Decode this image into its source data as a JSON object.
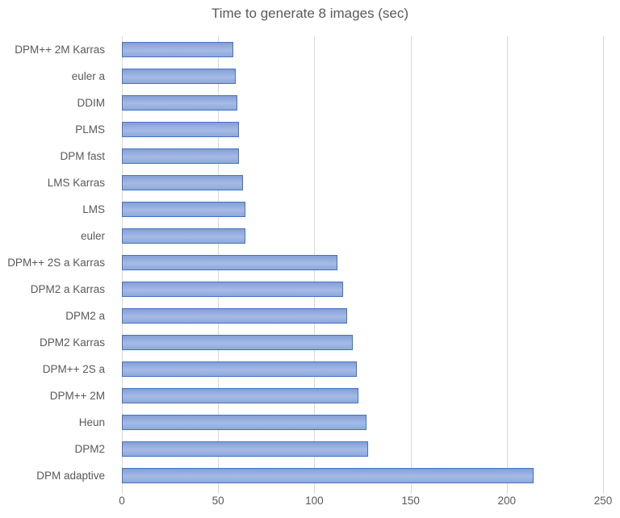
{
  "title": "Time to generate 8 images (sec)",
  "colors": {
    "background": "#ffffff",
    "text": "#595959",
    "gridline": "#D9D9D9",
    "bar_fill": "#8EA9DB",
    "bar_fill_light": "#A6BAE6",
    "bar_fill_dark": "#84A0D6",
    "bar_border": "#4472C4"
  },
  "chart_data": {
    "type": "bar",
    "orientation": "horizontal",
    "title": "Time to generate 8 images (sec)",
    "categories": [
      "DPM++ 2M Karras",
      "euler a",
      "DDIM",
      "PLMS",
      "DPM fast",
      "LMS Karras",
      "LMS",
      "euler",
      "DPM++ 2S a Karras",
      "DPM2 a Karras",
      "DPM2 a",
      "DPM2 Karras",
      "DPM++ 2S a",
      "DPM++ 2M",
      "Heun",
      "DPM2",
      "DPM adaptive"
    ],
    "values": [
      58,
      59,
      60,
      61,
      61,
      63,
      64,
      64,
      112,
      115,
      117,
      120,
      122,
      123,
      127,
      128,
      214
    ],
    "xlabel": "",
    "ylabel": "",
    "xlim": [
      0,
      250
    ],
    "xticks": [
      0,
      50,
      100,
      150,
      200,
      250
    ],
    "grid": true,
    "legend": false
  }
}
